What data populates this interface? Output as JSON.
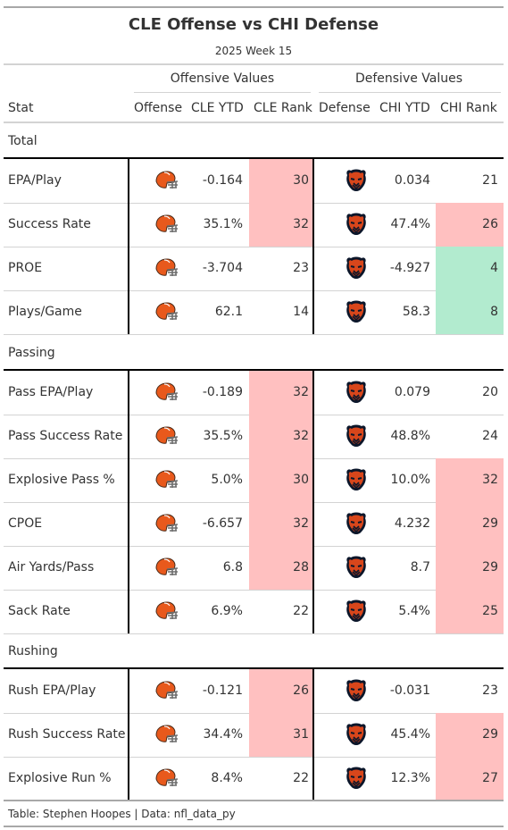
{
  "title": "CLE Offense vs CHI Defense",
  "subtitle": "2025 Week 15",
  "spanners": {
    "offense": "Offensive Values",
    "defense": "Defensive Values"
  },
  "columns": {
    "stat": "Stat",
    "offense": "Offense",
    "cle_ytd": "CLE YTD",
    "cle_rank": "CLE Rank",
    "defense": "Defense",
    "chi_ytd": "CHI YTD",
    "chi_rank": "CHI Rank"
  },
  "colors": {
    "bad": "#ffc0c0",
    "good": "#b2ebcf",
    "browns_orange": "#e8591c",
    "bears_orange": "#d8461b",
    "bears_navy": "#0b162a"
  },
  "groups": [
    {
      "name": "Total",
      "rows": [
        {
          "stat": "EPA/Play",
          "cle_ytd": "-0.164",
          "cle_rank": "30",
          "chi_ytd": "0.034",
          "chi_rank": "21",
          "cle_hl": "bad",
          "chi_hl": ""
        },
        {
          "stat": "Success Rate",
          "cle_ytd": "35.1%",
          "cle_rank": "32",
          "chi_ytd": "47.4%",
          "chi_rank": "26",
          "cle_hl": "bad",
          "chi_hl": "bad"
        },
        {
          "stat": "PROE",
          "cle_ytd": "-3.704",
          "cle_rank": "23",
          "chi_ytd": "-4.927",
          "chi_rank": "4",
          "cle_hl": "",
          "chi_hl": "good"
        },
        {
          "stat": "Plays/Game",
          "cle_ytd": "62.1",
          "cle_rank": "14",
          "chi_ytd": "58.3",
          "chi_rank": "8",
          "cle_hl": "",
          "chi_hl": "good"
        }
      ]
    },
    {
      "name": "Passing",
      "rows": [
        {
          "stat": "Pass EPA/Play",
          "cle_ytd": "-0.189",
          "cle_rank": "32",
          "chi_ytd": "0.079",
          "chi_rank": "20",
          "cle_hl": "bad",
          "chi_hl": ""
        },
        {
          "stat": "Pass Success Rate",
          "cle_ytd": "35.5%",
          "cle_rank": "32",
          "chi_ytd": "48.8%",
          "chi_rank": "24",
          "cle_hl": "bad",
          "chi_hl": ""
        },
        {
          "stat": "Explosive Pass %",
          "cle_ytd": "5.0%",
          "cle_rank": "30",
          "chi_ytd": "10.0%",
          "chi_rank": "32",
          "cle_hl": "bad",
          "chi_hl": "bad"
        },
        {
          "stat": "CPOE",
          "cle_ytd": "-6.657",
          "cle_rank": "32",
          "chi_ytd": "4.232",
          "chi_rank": "29",
          "cle_hl": "bad",
          "chi_hl": "bad"
        },
        {
          "stat": "Air Yards/Pass",
          "cle_ytd": "6.8",
          "cle_rank": "28",
          "chi_ytd": "8.7",
          "chi_rank": "29",
          "cle_hl": "bad",
          "chi_hl": "bad"
        },
        {
          "stat": "Sack Rate",
          "cle_ytd": "6.9%",
          "cle_rank": "22",
          "chi_ytd": "5.4%",
          "chi_rank": "25",
          "cle_hl": "",
          "chi_hl": "bad"
        }
      ]
    },
    {
      "name": "Rushing",
      "rows": [
        {
          "stat": "Rush EPA/Play",
          "cle_ytd": "-0.121",
          "cle_rank": "26",
          "chi_ytd": "-0.031",
          "chi_rank": "23",
          "cle_hl": "bad",
          "chi_hl": ""
        },
        {
          "stat": "Rush Success Rate",
          "cle_ytd": "34.4%",
          "cle_rank": "31",
          "chi_ytd": "45.4%",
          "chi_rank": "29",
          "cle_hl": "bad",
          "chi_hl": "bad"
        },
        {
          "stat": "Explosive Run %",
          "cle_ytd": "8.4%",
          "cle_rank": "22",
          "chi_ytd": "12.3%",
          "chi_rank": "27",
          "cle_hl": "",
          "chi_hl": "bad"
        }
      ]
    }
  ],
  "footer": "Table: Stephen Hoopes | Data: nfl_data_py"
}
